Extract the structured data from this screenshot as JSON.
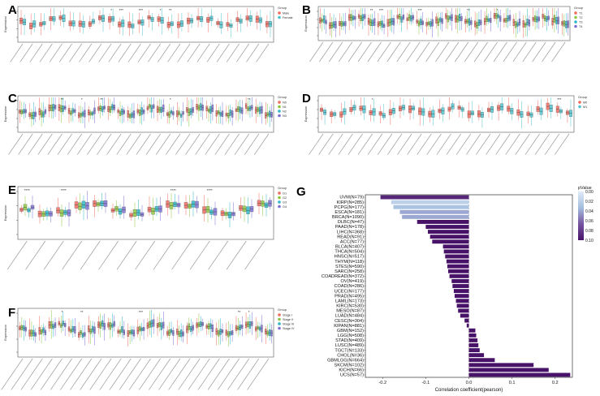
{
  "panels": [
    {
      "id": "A",
      "ylabel": "Expression",
      "legend_title": "Group",
      "groups": [
        "Male",
        "Female"
      ],
      "colors": [
        "#f06a5e",
        "#4ec3cf"
      ],
      "n_genes": 26,
      "sig_marks": [
        "",
        "",
        "",
        "",
        "",
        "",
        "",
        "",
        "",
        "*",
        "***",
        "",
        "***",
        "",
        "*",
        "**",
        "",
        "",
        "",
        "",
        "",
        "",
        "",
        "",
        "",
        ""
      ]
    },
    {
      "id": "B",
      "ylabel": "Expression",
      "legend_title": "Group",
      "groups": [
        "T1",
        "T2",
        "T3",
        "T4"
      ],
      "colors": [
        "#f06a5e",
        "#8cc63f",
        "#2bb7c6",
        "#7b6fd6"
      ],
      "n_genes": 26,
      "sig_marks": [
        "",
        "",
        "",
        "",
        "",
        "**",
        "***",
        "",
        "",
        "",
        "***",
        "",
        "",
        "",
        "",
        "**",
        "",
        "",
        "*",
        "",
        "",
        "",
        "",
        "",
        "",
        ""
      ]
    },
    {
      "id": "C",
      "ylabel": "Expression",
      "legend_title": "Group",
      "groups": [
        "N0",
        "N1",
        "N2",
        "N3"
      ],
      "colors": [
        "#f06a5e",
        "#8cc63f",
        "#2bb7c6",
        "#7b6fd6"
      ],
      "n_genes": 26,
      "sig_marks": [
        "",
        "",
        "",
        "",
        "**",
        "",
        "*",
        "",
        "**",
        "",
        "",
        "",
        "",
        "",
        "",
        "*",
        "",
        "",
        "",
        "",
        "",
        "",
        "",
        "**",
        "",
        ""
      ]
    },
    {
      "id": "D",
      "ylabel": "Expression",
      "legend_title": "Group",
      "groups": [
        "M0",
        "M1"
      ],
      "colors": [
        "#f06a5e",
        "#4ec3cf"
      ],
      "n_genes": 26,
      "sig_marks": [
        "",
        "",
        "",
        "",
        "",
        "*",
        "",
        "",
        "",
        "",
        "",
        "",
        "",
        "",
        "",
        "",
        "",
        "",
        "",
        "",
        "",
        "",
        "",
        "",
        "***",
        ""
      ]
    },
    {
      "id": "E",
      "ylabel": "Expression",
      "legend_title": "Group",
      "groups": [
        "G1",
        "G2",
        "G3",
        "G4"
      ],
      "colors": [
        "#f06a5e",
        "#8cc63f",
        "#2bb7c6",
        "#7b6fd6"
      ],
      "n_genes": 14,
      "sig_marks": [
        "****",
        "",
        "****",
        "",
        "",
        "",
        "",
        "",
        "****",
        "",
        "****",
        "",
        "",
        ""
      ]
    },
    {
      "id": "F",
      "ylabel": "Expression",
      "legend_title": "Group",
      "groups": [
        "Stage I",
        "Stage II",
        "Stage III",
        "Stage IV"
      ],
      "colors": [
        "#f06a5e",
        "#8cc63f",
        "#2bb7c6",
        "#7b6fd6"
      ],
      "n_genes": 26,
      "sig_marks": [
        "",
        "",
        "",
        "",
        "*",
        "",
        "**",
        "",
        "",
        "",
        "",
        "",
        "***",
        "",
        "",
        "",
        "",
        "",
        "",
        "",
        "",
        "",
        "**",
        "*",
        "",
        ""
      ]
    }
  ],
  "chart_data": {
    "type": "bar",
    "panel_id": "G",
    "orientation": "horizontal",
    "xlabel": "Correlation coefficient(pearson)",
    "xlim": [
      -0.24,
      0.24
    ],
    "xticks": [
      "-0.2",
      "-0.1",
      "0.0",
      "0.1",
      "0.2"
    ],
    "xtick_values": [
      -0.2,
      -0.1,
      0.0,
      0.1,
      0.2
    ],
    "legend_title": "pValue",
    "legend_ticks": [
      "0.00",
      "0.02",
      "0.04",
      "0.06",
      "0.08",
      "0.10"
    ],
    "categories": [
      "UVM(N=79)",
      "KIRP(N=285)",
      "PCPG(N=177)",
      "ESCA(N=181)",
      "BRCA(N=1090)",
      "DLBC(N=47)",
      "PAAD(N=178)",
      "LIHC(N=368)",
      "READ(N=91)",
      "ACC(N=77)",
      "BLCA(N=407)",
      "THCA(N=504)",
      "HNSC(N=517)",
      "THYM(N=118)",
      "STES(N=590)",
      "SARC(N=258)",
      "COADREAD(N=372)",
      "OV(N=419)",
      "COAD(N=286)",
      "UCEC(N=177)",
      "PRAD(N=495)",
      "LAML(N=173)",
      "KIRC(N=530)",
      "MESO(N=87)",
      "LUAD(N=484)",
      "CESC(N=304)",
      "KIPAN(N=881)",
      "GBM(N=152)",
      "LGG(N=508)",
      "STAD(N=409)",
      "LUSC(N=489)",
      "TGCT(N=133)",
      "CHOL(N=36)",
      "GBMLGG(N=664)",
      "SKCM(N=102)",
      "KICH(N=66)",
      "UCS(N=57)"
    ],
    "values": [
      -0.205,
      -0.18,
      -0.175,
      -0.16,
      -0.155,
      -0.12,
      -0.1,
      -0.095,
      -0.09,
      -0.085,
      -0.06,
      -0.058,
      -0.055,
      -0.052,
      -0.05,
      -0.048,
      -0.045,
      -0.04,
      -0.038,
      -0.035,
      -0.033,
      -0.03,
      -0.028,
      -0.025,
      -0.02,
      -0.01,
      -0.005,
      0.015,
      0.017,
      0.02,
      0.022,
      0.025,
      0.035,
      0.06,
      0.15,
      0.185,
      0.235
    ],
    "pvalues": [
      0.09,
      0.02,
      0.03,
      0.04,
      0.04,
      0.1,
      0.1,
      0.1,
      0.1,
      0.1,
      0.1,
      0.1,
      0.1,
      0.1,
      0.1,
      0.1,
      0.1,
      0.1,
      0.1,
      0.1,
      0.1,
      0.1,
      0.1,
      0.1,
      0.1,
      0.1,
      0.1,
      0.1,
      0.1,
      0.1,
      0.1,
      0.1,
      0.1,
      0.1,
      0.1,
      0.1,
      0.1
    ]
  }
}
